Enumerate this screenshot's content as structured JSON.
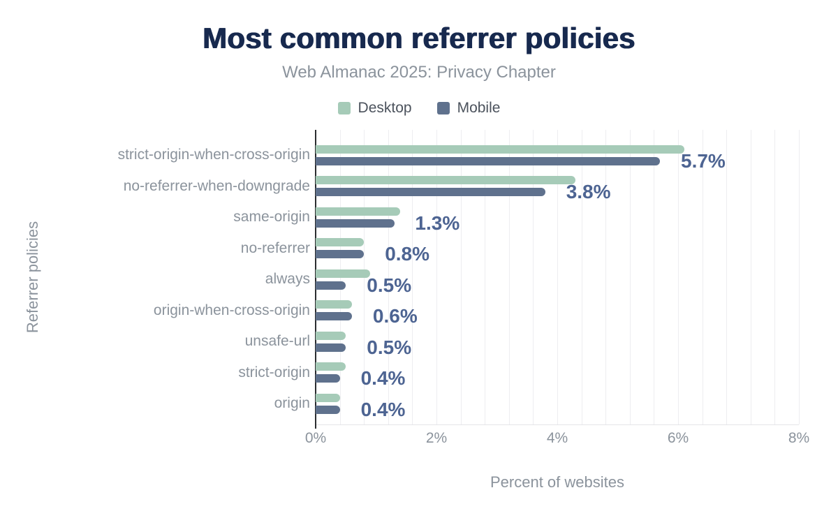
{
  "header": {
    "title": "Most common referrer policies",
    "subtitle": "Web Almanac 2025: Privacy Chapter"
  },
  "legend": [
    {
      "label": "Desktop",
      "color": "#a6cbb8"
    },
    {
      "label": "Mobile",
      "color": "#5f718d"
    }
  ],
  "colors": {
    "title": "#17294e",
    "secondary_text": "#8b939c",
    "legend_text": "#4b525c",
    "desktop_bar": "#a6cbb8",
    "mobile_bar": "#5f718d",
    "value_label": "#4d6492",
    "axis_line": "#2b2d30",
    "gridline": "#ededf0"
  },
  "chart_data": {
    "type": "bar",
    "orientation": "horizontal",
    "title": "Most common referrer policies",
    "subtitle": "Web Almanac 2025: Privacy Chapter",
    "xlabel": "Percent of websites",
    "ylabel": "Referrer policies",
    "categories": [
      "strict-origin-when-cross-origin",
      "no-referrer-when-downgrade",
      "same-origin",
      "no-referrer",
      "always",
      "origin-when-cross-origin",
      "unsafe-url",
      "strict-origin",
      "origin"
    ],
    "series": [
      {
        "name": "Desktop",
        "color": "#a6cbb8",
        "values": [
          6.1,
          4.3,
          1.4,
          0.8,
          0.9,
          0.6,
          0.5,
          0.5,
          0.4
        ]
      },
      {
        "name": "Mobile",
        "color": "#5f718d",
        "values": [
          5.7,
          3.8,
          1.3,
          0.8,
          0.5,
          0.6,
          0.5,
          0.4,
          0.4
        ]
      }
    ],
    "data_labels": [
      "5.7%",
      "3.8%",
      "1.3%",
      "0.8%",
      "0.5%",
      "0.6%",
      "0.5%",
      "0.4%",
      "0.4%"
    ],
    "x_ticks": [
      "0%",
      "2%",
      "4%",
      "6%",
      "8%"
    ],
    "xlim": [
      0,
      8
    ],
    "grid_minor_step": 0.4,
    "grid": true,
    "legend_position": "top"
  }
}
